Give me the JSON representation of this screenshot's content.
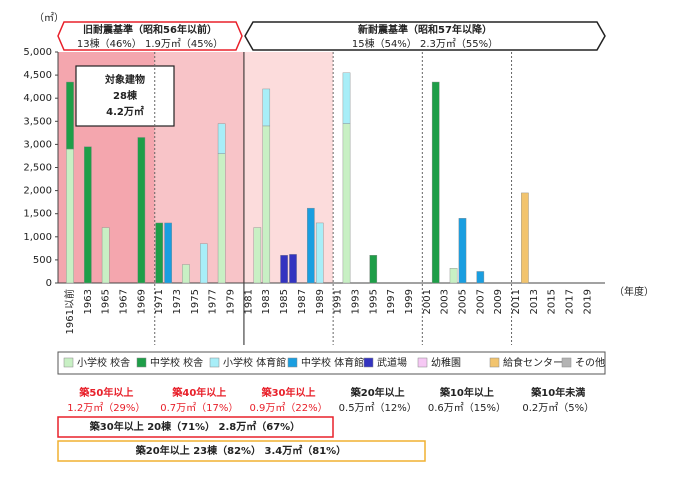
{
  "chart_data": {
    "type": "bar",
    "stacked": true,
    "unit_y": "（㎡）",
    "unit_x": "（年度）",
    "header_old": {
      "title": "旧耐震基準（昭和56年以前）",
      "subtitle": "13棟（46%）  1.9万㎡（45%）"
    },
    "header_new": {
      "title": "新耐震基準（昭和57年以降）",
      "subtitle": "15棟（54%）  2.3万㎡（55%）"
    },
    "target_box": [
      "対象建物",
      "28棟",
      "4.2万㎡"
    ],
    "categories": [
      "1961以前",
      null,
      "1963",
      null,
      "1965",
      null,
      "1967",
      null,
      "1969",
      null,
      "1971",
      null,
      "1973",
      null,
      "1975",
      null,
      "1977",
      null,
      "1979",
      null,
      "1981",
      null,
      "1983",
      null,
      "1985",
      null,
      "1987",
      null,
      "1989",
      null,
      "1991",
      null,
      "1993",
      null,
      "1995",
      null,
      "1997",
      null,
      "1999",
      null,
      "2001",
      null,
      "2003",
      null,
      "2005",
      null,
      "2007",
      null,
      "2009",
      null,
      "2011",
      null,
      "2013",
      null,
      "2015",
      null,
      "2017",
      null,
      "2019",
      null
    ],
    "series": [
      {
        "name": "小学校 校舎",
        "color": "#c8f0c4",
        "values": [
          2900,
          null,
          null,
          null,
          1200,
          null,
          null,
          null,
          null,
          null,
          null,
          null,
          null,
          400,
          null,
          null,
          null,
          2800,
          null,
          null,
          null,
          1200,
          3400,
          null,
          null,
          null,
          null,
          null,
          null,
          null,
          null,
          3450,
          null,
          null,
          null,
          null,
          null,
          null,
          null,
          null,
          null,
          null,
          null,
          320,
          null,
          null,
          null,
          null,
          null,
          null,
          null,
          null,
          null,
          null,
          null,
          null,
          null,
          null,
          null,
          null
        ]
      },
      {
        "name": "中学校 校舎",
        "color": "#1e9e48",
        "values": [
          1450,
          null,
          2950,
          null,
          null,
          null,
          null,
          null,
          3150,
          null,
          1300,
          null,
          null,
          null,
          null,
          null,
          null,
          null,
          null,
          null,
          null,
          null,
          null,
          null,
          null,
          null,
          null,
          null,
          null,
          null,
          null,
          null,
          null,
          null,
          600,
          null,
          null,
          null,
          null,
          null,
          null,
          4350,
          null,
          null,
          null,
          null,
          null,
          null,
          null,
          null,
          null,
          null,
          null,
          null,
          null,
          null,
          null,
          null,
          null,
          null
        ]
      },
      {
        "name": "小学校 体育館",
        "color": "#a8eef8",
        "values": [
          null,
          null,
          null,
          null,
          null,
          null,
          null,
          null,
          null,
          null,
          null,
          null,
          null,
          null,
          null,
          850,
          null,
          650,
          null,
          null,
          null,
          null,
          800,
          null,
          null,
          null,
          null,
          null,
          1300,
          null,
          null,
          1100,
          null,
          null,
          null,
          null,
          null,
          null,
          null,
          null,
          null,
          null,
          null,
          null,
          null,
          null,
          null,
          null,
          null,
          null,
          null,
          null,
          null,
          null,
          null,
          null,
          null,
          null,
          null,
          null
        ]
      },
      {
        "name": "中学校 体育館",
        "color": "#1a9ee0",
        "values": [
          null,
          null,
          null,
          null,
          null,
          null,
          null,
          null,
          null,
          null,
          null,
          1300,
          null,
          null,
          null,
          null,
          null,
          null,
          null,
          null,
          null,
          null,
          null,
          null,
          null,
          null,
          null,
          1620,
          null,
          null,
          null,
          null,
          null,
          null,
          null,
          null,
          null,
          null,
          null,
          null,
          null,
          null,
          null,
          null,
          1400,
          null,
          250,
          null,
          null,
          null,
          null,
          null,
          null,
          null,
          null,
          null,
          null,
          null,
          null,
          null
        ]
      },
      {
        "name": "武道場",
        "color": "#3434c0",
        "values": [
          null,
          null,
          null,
          null,
          null,
          null,
          null,
          null,
          null,
          null,
          null,
          null,
          null,
          null,
          null,
          null,
          null,
          null,
          null,
          null,
          null,
          null,
          null,
          null,
          600,
          620,
          null,
          null,
          null,
          null,
          null,
          null,
          null,
          null,
          null,
          null,
          null,
          null,
          null,
          null,
          null,
          null,
          null,
          null,
          null,
          null,
          null,
          null,
          null,
          null,
          null,
          null,
          null,
          null,
          null,
          null,
          null,
          null,
          null,
          null
        ]
      },
      {
        "name": "幼稚園",
        "color": "#f6c8f4",
        "values": [
          null,
          null,
          null,
          null,
          null,
          null,
          null,
          null,
          null,
          null,
          null,
          null,
          null,
          null,
          null,
          null,
          null,
          null,
          null,
          null,
          null,
          null,
          null,
          null,
          null,
          null,
          null,
          null,
          null,
          null,
          null,
          null,
          null,
          null,
          null,
          null,
          null,
          null,
          null,
          null,
          null,
          null,
          null,
          null,
          null,
          null,
          null,
          null,
          null,
          null,
          null,
          null,
          null,
          null,
          null,
          null,
          null,
          null,
          null,
          null
        ]
      },
      {
        "name": "給食センター",
        "color": "#f2c46e",
        "values": [
          null,
          null,
          null,
          null,
          null,
          null,
          null,
          null,
          null,
          null,
          null,
          null,
          null,
          null,
          null,
          null,
          null,
          null,
          null,
          null,
          null,
          null,
          null,
          null,
          null,
          null,
          null,
          null,
          null,
          null,
          null,
          null,
          null,
          null,
          null,
          null,
          null,
          null,
          null,
          null,
          null,
          null,
          null,
          null,
          null,
          null,
          null,
          null,
          null,
          null,
          null,
          1950,
          null,
          null,
          null,
          null,
          null,
          null,
          null,
          null
        ]
      },
      {
        "name": "その他",
        "color": "#b4b4b4",
        "values": [
          null,
          null,
          null,
          null,
          null,
          null,
          null,
          null,
          null,
          null,
          null,
          null,
          null,
          null,
          null,
          null,
          null,
          null,
          null,
          null,
          null,
          null,
          null,
          null,
          null,
          null,
          null,
          null,
          null,
          null,
          null,
          null,
          null,
          null,
          null,
          null,
          null,
          null,
          null,
          null,
          null,
          null,
          null,
          null,
          null,
          null,
          null,
          null,
          null,
          null,
          null,
          null,
          null,
          null,
          null,
          null,
          null,
          null,
          null,
          null
        ]
      }
    ],
    "ylim": [
      0,
      5000
    ],
    "yticks": [
      0,
      500,
      {
        "value": 1000,
        "label": "1,000"
      },
      {
        "value": 1500,
        "label": "1,500"
      },
      {
        "value": 2000,
        "label": "2,000"
      },
      {
        "value": 2500,
        "label": "2,500"
      },
      {
        "value": 3000,
        "label": "3,000"
      },
      {
        "value": 3500,
        "label": "3,500"
      },
      {
        "value": 4000,
        "label": "4,000"
      },
      {
        "value": 4500,
        "label": "4,500"
      },
      {
        "value": 5000,
        "label": "5,000"
      }
    ],
    "periods": [
      {
        "label": "築50年以上",
        "value": "1.2万㎡（29%）",
        "color": "#e8202a",
        "background": "#f4a6ae"
      },
      {
        "label": "築40年以上",
        "value": "0.7万㎡（17%）",
        "color": "#e8202a",
        "background": "#f8c4c8"
      },
      {
        "label": "築30年以上",
        "value": "0.9万㎡（22%）",
        "color": "#e8202a",
        "background": "#fcdcdc"
      },
      {
        "label": "築20年以上",
        "value": "0.5万㎡（12%）",
        "color": "#222222",
        "background": "#ffffff"
      },
      {
        "label": "築10年以上",
        "value": "0.6万㎡（15%）",
        "color": "#222222",
        "background": "#ffffff"
      },
      {
        "label": "築10年未満",
        "value": "0.2万㎡（5%）",
        "color": "#222222",
        "background": "#ffffff"
      }
    ],
    "summary_30": "築30年以上 20棟（71%） 2.8万㎡（67%）",
    "summary_20": "築20年以上 23棟（82%） 3.4万㎡（81%）"
  }
}
